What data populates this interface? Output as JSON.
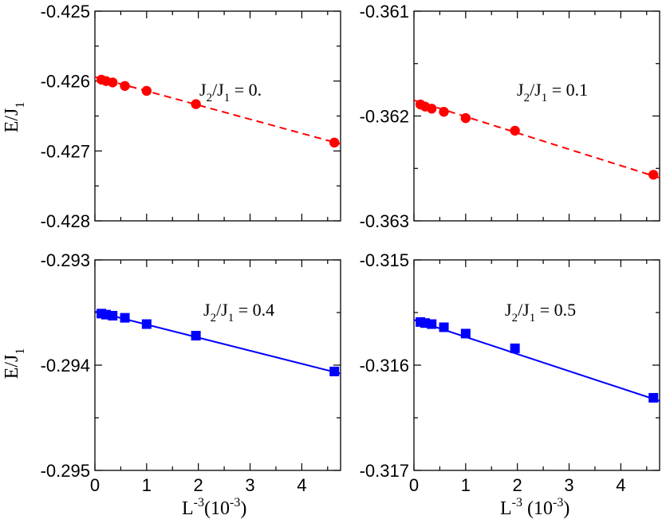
{
  "chart_data": [
    {
      "type": "scatter",
      "panel": "top-left",
      "annotation": {
        "a": "J",
        "s1": "2",
        "b": "/J",
        "s2": "1",
        "c": " = 0."
      },
      "ylabel": {
        "main": "E/J",
        "sub": "1"
      },
      "xlabel": null,
      "xlim": [
        0,
        4.75
      ],
      "ylim": [
        -0.428,
        -0.425
      ],
      "yticks": [
        "-0.428",
        "-0.427",
        "-0.426",
        "-0.425"
      ],
      "yticks_values": [
        -0.428,
        -0.427,
        -0.426,
        -0.425
      ],
      "xticks": [],
      "xticks_values": [
        0,
        1,
        2,
        3,
        4
      ],
      "color": "#ff0000",
      "marker": "circle",
      "line_style": "dashed",
      "points": {
        "x": [
          0.125,
          0.216,
          0.343,
          0.579,
          1.0,
          1.953,
          4.63
        ],
        "y": [
          -0.42598,
          -0.426,
          -0.42602,
          -0.42607,
          -0.42614,
          -0.42633,
          -0.42688
        ]
      },
      "fit": {
        "x": [
          0,
          4.75
        ],
        "y": [
          -0.42594,
          -0.4269
        ]
      }
    },
    {
      "type": "scatter",
      "panel": "top-right",
      "annotation": {
        "a": "J",
        "s1": "2",
        "b": "/J",
        "s2": "1",
        "c": " = 0.1"
      },
      "ylabel": null,
      "xlabel": null,
      "xlim": [
        0,
        4.75
      ],
      "ylim": [
        -0.363,
        -0.361
      ],
      "yticks": [
        "-0.363",
        "-0.362",
        "-0.361"
      ],
      "yticks_values": [
        -0.363,
        -0.362,
        -0.361
      ],
      "xticks": [],
      "xticks_values": [
        0,
        1,
        2,
        3,
        4
      ],
      "color": "#ff0000",
      "marker": "circle",
      "line_style": "dashed",
      "points": {
        "x": [
          0.125,
          0.216,
          0.343,
          0.579,
          1.0,
          1.953,
          4.63
        ],
        "y": [
          -0.36189,
          -0.36191,
          -0.36193,
          -0.36196,
          -0.36202,
          -0.36214,
          -0.36256
        ]
      },
      "fit": {
        "x": [
          0,
          4.75
        ],
        "y": [
          -0.36185,
          -0.36259
        ]
      }
    },
    {
      "type": "scatter",
      "panel": "bottom-left",
      "annotation": {
        "a": "J",
        "s1": "2",
        "b": "/J",
        "s2": "1",
        "c": " = 0.4"
      },
      "ylabel": {
        "main": "E/J",
        "sub": "1"
      },
      "xlabel": {
        "main": "L",
        "sup": "-3",
        "rest": "(10",
        "sup2": "-3",
        "end": ")"
      },
      "xlim": [
        0,
        4.75
      ],
      "ylim": [
        -0.295,
        -0.293
      ],
      "yticks": [
        "-0.295",
        "-0.294",
        "-0.293"
      ],
      "yticks_values": [
        -0.295,
        -0.294,
        -0.293
      ],
      "xticks": [
        "0",
        "1",
        "2",
        "3",
        "4"
      ],
      "xticks_values": [
        0,
        1,
        2,
        3,
        4
      ],
      "color": "#0000ff",
      "marker": "square",
      "line_style": "solid",
      "points": {
        "x": [
          0.125,
          0.216,
          0.343,
          0.579,
          1.0,
          1.953,
          4.63
        ],
        "y": [
          -0.29351,
          -0.29352,
          -0.29353,
          -0.29355,
          -0.29361,
          -0.29372,
          -0.29406
        ]
      },
      "fit": {
        "x": [
          0,
          4.75
        ],
        "y": [
          -0.29349,
          -0.29408
        ]
      }
    },
    {
      "type": "scatter",
      "panel": "bottom-right",
      "annotation": {
        "a": "J",
        "s1": "2",
        "b": "/J",
        "s2": "1",
        "c": " = 0.5"
      },
      "ylabel": null,
      "xlabel": {
        "main": "L",
        "sup": "-3",
        "rest": " (10",
        "sup2": "-3",
        "end": ")"
      },
      "xlim": [
        0,
        4.75
      ],
      "ylim": [
        -0.317,
        -0.315
      ],
      "yticks": [
        "-0.317",
        "-0.316",
        "-0.315"
      ],
      "yticks_values": [
        -0.317,
        -0.316,
        -0.315
      ],
      "xticks": [
        "0",
        "1",
        "2",
        "3",
        "4"
      ],
      "xticks_values": [
        0,
        1,
        2,
        3,
        4
      ],
      "color": "#0000ff",
      "marker": "square",
      "line_style": "solid",
      "points": {
        "x": [
          0.125,
          0.216,
          0.343,
          0.579,
          1.0,
          1.953,
          4.63
        ],
        "y": [
          -0.31559,
          -0.3156,
          -0.31561,
          -0.31564,
          -0.3157,
          -0.31584,
          -0.31631
        ]
      },
      "fit": {
        "x": [
          0,
          4.75
        ],
        "y": [
          -0.31557,
          -0.31634
        ]
      }
    }
  ]
}
